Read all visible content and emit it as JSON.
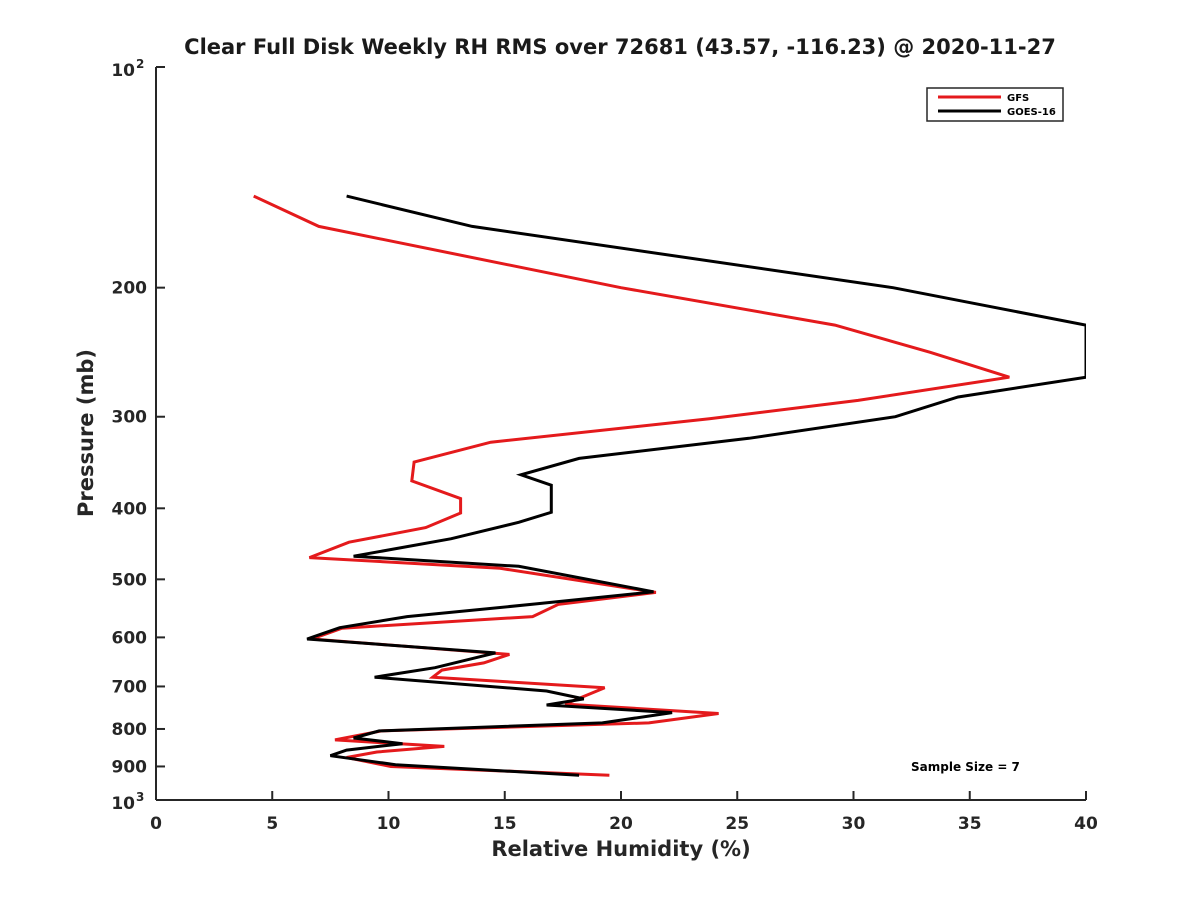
{
  "chart_data": {
    "type": "line",
    "title": "Clear Full Disk Weekly RH RMS over 72681 (43.57, -116.23) @ 2020-11-27",
    "xlabel": "Relative Humidity (%)",
    "ylabel": "Pressure (mb)",
    "xlim": [
      0,
      40
    ],
    "ylim": [
      100,
      1000
    ],
    "y_scale": "log",
    "y_reversed": true,
    "x_ticks": [
      "0",
      "5",
      "10",
      "15",
      "20",
      "25",
      "30",
      "35",
      "40"
    ],
    "y_ticks": [
      {
        "value": 100,
        "base": "10",
        "exp": "2"
      },
      {
        "value": 200,
        "label": "200"
      },
      {
        "value": 300,
        "label": "300"
      },
      {
        "value": 400,
        "label": "400"
      },
      {
        "value": 500,
        "label": "500"
      },
      {
        "value": 600,
        "label": "600"
      },
      {
        "value": 700,
        "label": "700"
      },
      {
        "value": 800,
        "label": "800"
      },
      {
        "value": 900,
        "label": "900"
      },
      {
        "value": 1000,
        "base": "10",
        "exp": "3"
      }
    ],
    "legend_position": "top-right",
    "grid": false,
    "series": [
      {
        "name": "GFS",
        "color": "#e41a1c",
        "points": [
          [
            4.2,
            150
          ],
          [
            7.0,
            165
          ],
          [
            20.0,
            200
          ],
          [
            29.2,
            225
          ],
          [
            33.3,
            245
          ],
          [
            36.7,
            265
          ],
          [
            30.2,
            285
          ],
          [
            23.8,
            302
          ],
          [
            14.4,
            325
          ],
          [
            11.1,
            346
          ],
          [
            11.0,
            367
          ],
          [
            13.1,
            388
          ],
          [
            13.1,
            406
          ],
          [
            11.6,
            425
          ],
          [
            8.3,
            445
          ],
          [
            6.6,
            467
          ],
          [
            14.8,
            483
          ],
          [
            21.5,
            521
          ],
          [
            17.3,
            541
          ],
          [
            16.2,
            562
          ],
          [
            8.0,
            583
          ],
          [
            6.7,
            603
          ],
          [
            15.2,
            633
          ],
          [
            14.1,
            650
          ],
          [
            12.3,
            665
          ],
          [
            11.9,
            680
          ],
          [
            19.3,
            703
          ],
          [
            17.6,
            740
          ],
          [
            24.2,
            762
          ],
          [
            21.2,
            785
          ],
          [
            9.7,
            805
          ],
          [
            7.7,
            828
          ],
          [
            12.4,
            845
          ],
          [
            9.5,
            860
          ],
          [
            8.2,
            875
          ],
          [
            10.1,
            900
          ],
          [
            19.5,
            925
          ]
        ]
      },
      {
        "name": "GOES-16",
        "color": "#000000",
        "points": [
          [
            8.2,
            150
          ],
          [
            13.6,
            165
          ],
          [
            31.7,
            200
          ],
          [
            40.0,
            225
          ],
          [
            40.0,
            265
          ],
          [
            34.5,
            282
          ],
          [
            31.8,
            300
          ],
          [
            25.5,
            321
          ],
          [
            18.2,
            342
          ],
          [
            15.7,
            360
          ],
          [
            17.0,
            372
          ],
          [
            17.0,
            405
          ],
          [
            15.6,
            418
          ],
          [
            12.7,
            440
          ],
          [
            8.5,
            465
          ],
          [
            15.6,
            480
          ],
          [
            21.4,
            520
          ],
          [
            16.4,
            540
          ],
          [
            10.8,
            562
          ],
          [
            7.9,
            582
          ],
          [
            6.5,
            603
          ],
          [
            14.6,
            630
          ],
          [
            12.0,
            660
          ],
          [
            9.4,
            680
          ],
          [
            16.8,
            710
          ],
          [
            18.4,
            728
          ],
          [
            16.8,
            742
          ],
          [
            22.2,
            760
          ],
          [
            19.2,
            785
          ],
          [
            9.6,
            805
          ],
          [
            8.5,
            823
          ],
          [
            10.6,
            838
          ],
          [
            8.2,
            855
          ],
          [
            7.5,
            870
          ],
          [
            10.3,
            895
          ],
          [
            18.2,
            925
          ]
        ]
      }
    ],
    "annotations": [
      {
        "text": "Sample Size = 7",
        "x": 33.0,
        "y": 900
      }
    ]
  }
}
